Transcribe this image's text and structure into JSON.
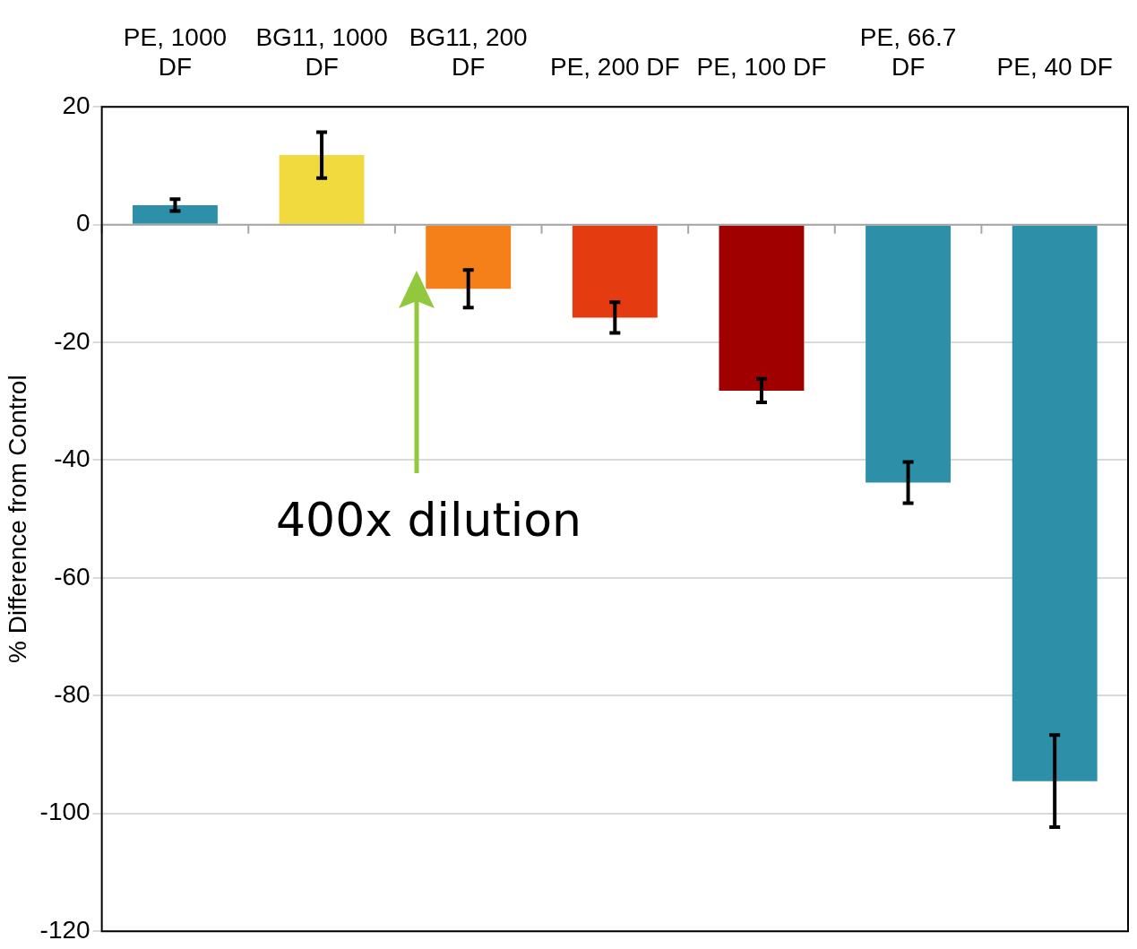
{
  "chart_data": {
    "type": "bar",
    "ylabel": "% Difference from Control",
    "categories": [
      "PE, 1000 DF",
      "BG11, 1000 DF",
      "BG11, 200 DF",
      "PE, 200 DF",
      "PE, 100 DF",
      "PE, 66.7 DF",
      "PE, 40 DF"
    ],
    "values": [
      3.3,
      11.8,
      -10.9,
      -15.8,
      -28.2,
      -43.8,
      -94.5
    ],
    "errors": [
      1,
      3.9,
      3.2,
      2.6,
      2,
      3.5,
      7.8
    ],
    "colors": [
      "#2e8fa8",
      "#f0da3e",
      "#f5801a",
      "#e43c10",
      "#a00000",
      "#2e8fa8",
      "#2e8fa8"
    ],
    "ylim": [
      -120,
      20
    ],
    "yticks": [
      -120,
      -100,
      -80,
      -60,
      -40,
      -20,
      0,
      20
    ],
    "grid": "y",
    "legend": false,
    "annotations": [
      "400x dilution"
    ]
  }
}
